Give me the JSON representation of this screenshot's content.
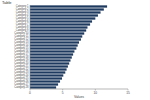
{
  "chart_data": {
    "type": "bar",
    "orientation": "horizontal",
    "title": "Table",
    "x_label": "Values",
    "categories": [
      "Category 1",
      "Category 2",
      "Category 3",
      "Category 4",
      "Category 5",
      "Category 6",
      "Category 7",
      "Category 8",
      "Category 9",
      "Category 10",
      "Category 11",
      "Category 12",
      "Category 13",
      "Category 14",
      "Category 15",
      "Category 16",
      "Category 17",
      "Category 18",
      "Category 19",
      "Category 20",
      "Category 21",
      "Category 22",
      "Category 23",
      "Category 24",
      "Category 25",
      "Category 26",
      "Category 27",
      "Category 28"
    ],
    "values": [
      11.8,
      11.3,
      10.8,
      10.4,
      10.0,
      9.5,
      9.2,
      8.8,
      8.6,
      8.3,
      8.0,
      7.8,
      7.5,
      7.3,
      7.1,
      6.8,
      6.6,
      6.4,
      6.2,
      6.0,
      5.8,
      5.6,
      5.4,
      5.1,
      4.9,
      4.6,
      4.3,
      4.0
    ],
    "color": "#1f3a5f",
    "xlim": [
      0,
      15
    ],
    "xticks": [
      0,
      5,
      10,
      15
    ],
    "grid": false
  }
}
